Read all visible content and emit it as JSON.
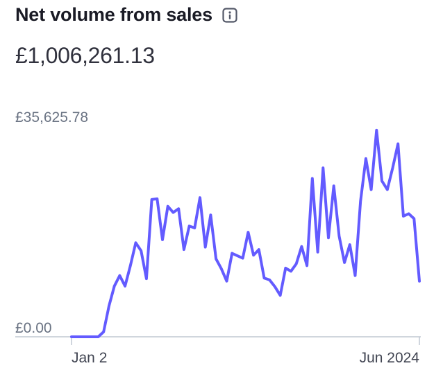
{
  "header": {
    "title": "Net volume from sales",
    "info_icon": "info-icon"
  },
  "summary": {
    "total": "£1,006,261.13"
  },
  "colors": {
    "line": "#635bff",
    "baseline": "#c0c8d2",
    "text_muted": "#6a7383"
  },
  "chart_data": {
    "type": "line",
    "title": "Net volume from sales",
    "ylim": [
      0,
      35625.78
    ],
    "y_tick_labels": [
      "£35,625.78",
      "£0.00"
    ],
    "x_tick_labels": [
      "Jan 2",
      "Jun 2024"
    ],
    "grid": false,
    "series": [
      {
        "values": [
          0,
          0,
          0,
          0,
          0,
          0,
          800,
          5000,
          8200,
          9900,
          8200,
          11500,
          15200,
          13900,
          9400,
          22200,
          22300,
          15700,
          21100,
          20100,
          20700,
          14100,
          17900,
          17600,
          22500,
          14500,
          19700,
          12600,
          11000,
          9000,
          13500,
          13100,
          12700,
          16900,
          13200,
          14100,
          9500,
          9200,
          8100,
          6700,
          11100,
          10600,
          11800,
          14600,
          11500,
          25600,
          13700,
          27300,
          16000,
          24400,
          16300,
          12000,
          14900,
          9900,
          21900,
          28800,
          23800,
          33400,
          25200,
          23800,
          27300,
          31200,
          19500,
          19900,
          19100,
          9000
        ]
      }
    ]
  }
}
